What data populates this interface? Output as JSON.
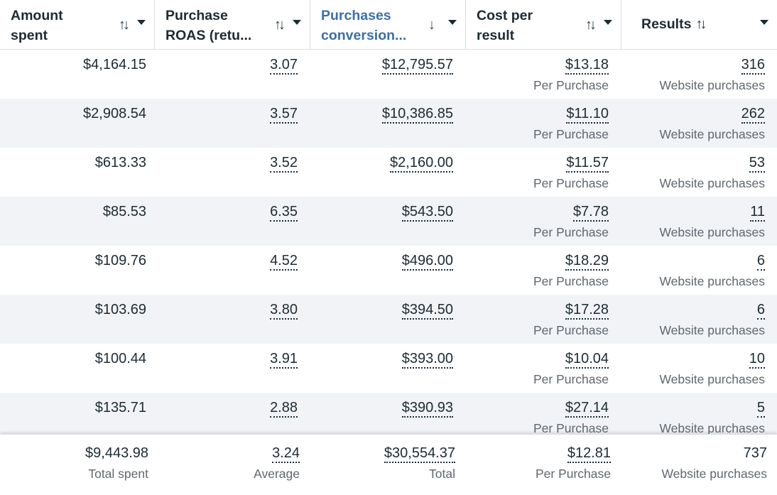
{
  "headers": [
    {
      "line1": "Amount",
      "line2": "spent",
      "sort_icon": "sort-both-icon"
    },
    {
      "line1": "Purchase",
      "line2": "ROAS (retu...",
      "sort_icon": "sort-both-icon"
    },
    {
      "line1": "Purchases",
      "line2": "conversion...",
      "sort_icon": "sort-down-icon",
      "accent": "#3b70a8"
    },
    {
      "line1": "Cost per",
      "line2": "result",
      "sort_icon": "sort-both-icon"
    },
    {
      "line1": "Results",
      "sort_icon": "sort-both-icon"
    }
  ],
  "rows": [
    {
      "amount": "$4,164.15",
      "roas": "3.07",
      "conv": "$12,795.57",
      "cost": "$13.18",
      "cost_sub": "Per Purchase",
      "results": "316",
      "results_sub": "Website purchases"
    },
    {
      "amount": "$2,908.54",
      "roas": "3.57",
      "conv": "$10,386.85",
      "cost": "$11.10",
      "cost_sub": "Per Purchase",
      "results": "262",
      "results_sub": "Website purchases"
    },
    {
      "amount": "$613.33",
      "roas": "3.52",
      "conv": "$2,160.00",
      "cost": "$11.57",
      "cost_sub": "Per Purchase",
      "results": "53",
      "results_sub": "Website purchases"
    },
    {
      "amount": "$85.53",
      "roas": "6.35",
      "conv": "$543.50",
      "cost": "$7.78",
      "cost_sub": "Per Purchase",
      "results": "11",
      "results_sub": "Website purchases"
    },
    {
      "amount": "$109.76",
      "roas": "4.52",
      "conv": "$496.00",
      "cost": "$18.29",
      "cost_sub": "Per Purchase",
      "results": "6",
      "results_sub": "Website purchases"
    },
    {
      "amount": "$103.69",
      "roas": "3.80",
      "conv": "$394.50",
      "cost": "$17.28",
      "cost_sub": "Per Purchase",
      "results": "6",
      "results_sub": "Website purchases"
    },
    {
      "amount": "$100.44",
      "roas": "3.91",
      "conv": "$393.00",
      "cost": "$10.04",
      "cost_sub": "Per Purchase",
      "results": "10",
      "results_sub": "Website purchases"
    },
    {
      "amount": "$135.71",
      "roas": "2.88",
      "conv": "$390.93",
      "cost": "$27.14",
      "cost_sub": "Per Purchase",
      "results": "5",
      "results_sub": "Website purchases"
    }
  ],
  "footer": {
    "amount": "$9,443.98",
    "amount_sub": "Total spent",
    "roas": "3.24",
    "roas_sub": "Average",
    "conv": "$30,554.37",
    "conv_sub": "Total",
    "cost": "$12.81",
    "cost_sub": "Per Purchase",
    "results": "737",
    "results_sub": "Website purchases"
  },
  "colors": {
    "accent": "#3b70a8",
    "row_alt": "#f1f3f6",
    "text": "#1c2b33",
    "muted": "#606770"
  }
}
